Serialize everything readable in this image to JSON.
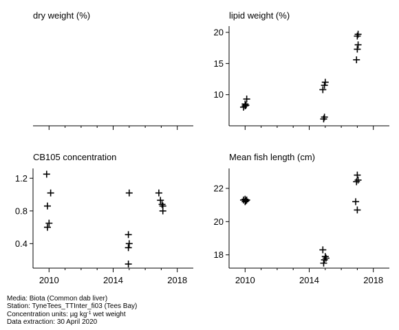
{
  "chart_data": [
    {
      "id": "dry",
      "type": "scatter",
      "title": "dry weight (%)",
      "xlim": [
        2009,
        2019
      ],
      "ylim": null,
      "x_ticks": [
        2010,
        2014,
        2018
      ],
      "x_tick_labels": [],
      "y_ticks": [],
      "y_tick_labels": [],
      "points": []
    },
    {
      "id": "lipid",
      "type": "scatter",
      "title": "lipid weight (%)",
      "xlim": [
        2009,
        2019
      ],
      "ylim": [
        5,
        21
      ],
      "x_ticks": [
        2010,
        2014,
        2018
      ],
      "x_tick_labels": [],
      "y_ticks": [
        10,
        15,
        20
      ],
      "y_tick_labels": [
        "10",
        "15",
        "20"
      ],
      "points": [
        {
          "x": 2009.9,
          "y": 8.0
        },
        {
          "x": 2010.0,
          "y": 8.5
        },
        {
          "x": 2010.1,
          "y": 9.3
        },
        {
          "x": 2010.0,
          "y": 8.2
        },
        {
          "x": 2010.05,
          "y": 8.3
        },
        {
          "x": 2014.85,
          "y": 10.8
        },
        {
          "x": 2014.95,
          "y": 11.5
        },
        {
          "x": 2015.0,
          "y": 12.0
        },
        {
          "x": 2014.9,
          "y": 6.1
        },
        {
          "x": 2014.95,
          "y": 6.4
        },
        {
          "x": 2016.95,
          "y": 15.6
        },
        {
          "x": 2017.0,
          "y": 17.3
        },
        {
          "x": 2017.05,
          "y": 18.0
        },
        {
          "x": 2017.0,
          "y": 19.4
        },
        {
          "x": 2017.05,
          "y": 19.7
        }
      ]
    },
    {
      "id": "cb105",
      "type": "scatter",
      "title": "CB105 concentration",
      "xlim": [
        2009,
        2019
      ],
      "ylim": [
        0.1,
        1.32
      ],
      "x_ticks": [
        2010,
        2014,
        2018
      ],
      "x_tick_labels": [
        "2010",
        "2014",
        "2018"
      ],
      "y_ticks": [
        0.4,
        0.8,
        1.2
      ],
      "y_tick_labels": [
        "0.4",
        "0.8",
        "1.2"
      ],
      "points": [
        {
          "x": 2009.85,
          "y": 1.25
        },
        {
          "x": 2010.1,
          "y": 1.02
        },
        {
          "x": 2009.9,
          "y": 0.86
        },
        {
          "x": 2010.0,
          "y": 0.65
        },
        {
          "x": 2009.9,
          "y": 0.6
        },
        {
          "x": 2015.0,
          "y": 1.02
        },
        {
          "x": 2014.95,
          "y": 0.51
        },
        {
          "x": 2015.0,
          "y": 0.4
        },
        {
          "x": 2014.95,
          "y": 0.35
        },
        {
          "x": 2014.95,
          "y": 0.15
        },
        {
          "x": 2016.85,
          "y": 1.02
        },
        {
          "x": 2016.95,
          "y": 0.93
        },
        {
          "x": 2017.05,
          "y": 0.88
        },
        {
          "x": 2017.1,
          "y": 0.86
        },
        {
          "x": 2017.1,
          "y": 0.8
        }
      ]
    },
    {
      "id": "length",
      "type": "scatter",
      "title": "Mean fish length (cm)",
      "xlim": [
        2009,
        2019
      ],
      "ylim": [
        17.2,
        23.2
      ],
      "x_ticks": [
        2010,
        2014,
        2018
      ],
      "x_tick_labels": [
        "2010",
        "2014",
        "2018"
      ],
      "y_ticks": [
        18,
        20,
        22
      ],
      "y_tick_labels": [
        "18",
        "20",
        "22"
      ],
      "points": [
        {
          "x": 2009.9,
          "y": 21.3
        },
        {
          "x": 2010.0,
          "y": 21.2
        },
        {
          "x": 2010.1,
          "y": 21.3
        },
        {
          "x": 2010.0,
          "y": 21.35
        },
        {
          "x": 2010.05,
          "y": 21.25
        },
        {
          "x": 2014.85,
          "y": 18.3
        },
        {
          "x": 2015.0,
          "y": 17.9
        },
        {
          "x": 2015.05,
          "y": 17.8
        },
        {
          "x": 2014.95,
          "y": 17.7
        },
        {
          "x": 2014.9,
          "y": 17.5
        },
        {
          "x": 2017.0,
          "y": 22.8
        },
        {
          "x": 2017.05,
          "y": 22.5
        },
        {
          "x": 2016.95,
          "y": 22.4
        },
        {
          "x": 2016.9,
          "y": 21.2
        },
        {
          "x": 2017.0,
          "y": 20.7
        }
      ]
    }
  ],
  "footer": {
    "media": "Media: Biota (Common dab liver)",
    "station": "Station: TyneTees_TTInter_fi03 (Tees Bay)",
    "units_prefix": "Concentration units:  µg kg",
    "units_exponent": "-1",
    "units_suffix": " wet weight",
    "extraction": "Data extraction: 30 April 2020"
  }
}
